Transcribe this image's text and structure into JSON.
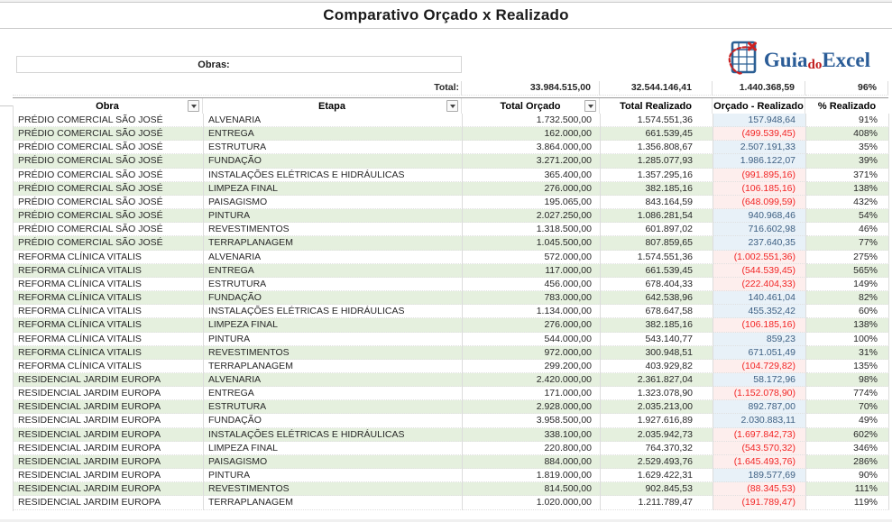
{
  "title": "Comparativo Orçado x Realizado",
  "filter_box": {
    "label": "Obras:"
  },
  "logo": {
    "text_primary": "Guia",
    "text_middle": "do",
    "text_secondary": "Excel",
    "blue": "#2a5c97",
    "red": "#c11b1b"
  },
  "totals": {
    "label": "Total:",
    "total_orcado": "33.984.515,00",
    "total_realizado": "32.544.146,41",
    "orcado_menos_realizado": "1.440.368,59",
    "pct_realizado": "96%"
  },
  "table": {
    "headers": [
      {
        "label": "Obra",
        "filter": true
      },
      {
        "label": "Etapa",
        "filter": true
      },
      {
        "label": "Total Orçado",
        "filter": true
      },
      {
        "label": "Total Realizado",
        "filter": false
      },
      {
        "label": "Orçado - Realizado",
        "filter": false
      },
      {
        "label": "% Realizado",
        "filter": false
      }
    ],
    "rows": [
      {
        "obra": "PRÉDIO COMERCIAL SÃO JOSÉ",
        "etapa": "ALVENARIA",
        "orcado": "1.732.500,00",
        "realizado": "1.574.551,36",
        "diff": "157.948,64",
        "diff_negative": false,
        "pct": "91%"
      },
      {
        "obra": "PRÉDIO COMERCIAL SÃO JOSÉ",
        "etapa": "ENTREGA",
        "orcado": "162.000,00",
        "realizado": "661.539,45",
        "diff": "(499.539,45)",
        "diff_negative": true,
        "pct": "408%"
      },
      {
        "obra": "PRÉDIO COMERCIAL SÃO JOSÉ",
        "etapa": "ESTRUTURA",
        "orcado": "3.864.000,00",
        "realizado": "1.356.808,67",
        "diff": "2.507.191,33",
        "diff_negative": false,
        "pct": "35%"
      },
      {
        "obra": "PRÉDIO COMERCIAL SÃO JOSÉ",
        "etapa": "FUNDAÇÃO",
        "orcado": "3.271.200,00",
        "realizado": "1.285.077,93",
        "diff": "1.986.122,07",
        "diff_negative": false,
        "pct": "39%"
      },
      {
        "obra": "PRÉDIO COMERCIAL SÃO JOSÉ",
        "etapa": "INSTALAÇÕES ELÉTRICAS E HIDRÁULICAS",
        "orcado": "365.400,00",
        "realizado": "1.357.295,16",
        "diff": "(991.895,16)",
        "diff_negative": true,
        "pct": "371%"
      },
      {
        "obra": "PRÉDIO COMERCIAL SÃO JOSÉ",
        "etapa": "LIMPEZA FINAL",
        "orcado": "276.000,00",
        "realizado": "382.185,16",
        "diff": "(106.185,16)",
        "diff_negative": true,
        "pct": "138%"
      },
      {
        "obra": "PRÉDIO COMERCIAL SÃO JOSÉ",
        "etapa": "PAISAGISMO",
        "orcado": "195.065,00",
        "realizado": "843.164,59",
        "diff": "(648.099,59)",
        "diff_negative": true,
        "pct": "432%"
      },
      {
        "obra": "PRÉDIO COMERCIAL SÃO JOSÉ",
        "etapa": "PINTURA",
        "orcado": "2.027.250,00",
        "realizado": "1.086.281,54",
        "diff": "940.968,46",
        "diff_negative": false,
        "pct": "54%"
      },
      {
        "obra": "PRÉDIO COMERCIAL SÃO JOSÉ",
        "etapa": "REVESTIMENTOS",
        "orcado": "1.318.500,00",
        "realizado": "601.897,02",
        "diff": "716.602,98",
        "diff_negative": false,
        "pct": "46%"
      },
      {
        "obra": "PRÉDIO COMERCIAL SÃO JOSÉ",
        "etapa": "TERRAPLANAGEM",
        "orcado": "1.045.500,00",
        "realizado": "807.859,65",
        "diff": "237.640,35",
        "diff_negative": false,
        "pct": "77%"
      },
      {
        "obra": "REFORMA CLÍNICA VITALIS",
        "etapa": "ALVENARIA",
        "orcado": "572.000,00",
        "realizado": "1.574.551,36",
        "diff": "(1.002.551,36)",
        "diff_negative": true,
        "pct": "275%"
      },
      {
        "obra": "REFORMA CLÍNICA VITALIS",
        "etapa": "ENTREGA",
        "orcado": "117.000,00",
        "realizado": "661.539,45",
        "diff": "(544.539,45)",
        "diff_negative": true,
        "pct": "565%"
      },
      {
        "obra": "REFORMA CLÍNICA VITALIS",
        "etapa": "ESTRUTURA",
        "orcado": "456.000,00",
        "realizado": "678.404,33",
        "diff": "(222.404,33)",
        "diff_negative": true,
        "pct": "149%"
      },
      {
        "obra": "REFORMA CLÍNICA VITALIS",
        "etapa": "FUNDAÇÃO",
        "orcado": "783.000,00",
        "realizado": "642.538,96",
        "diff": "140.461,04",
        "diff_negative": false,
        "pct": "82%"
      },
      {
        "obra": "REFORMA CLÍNICA VITALIS",
        "etapa": "INSTALAÇÕES ELÉTRICAS E HIDRÁULICAS",
        "orcado": "1.134.000,00",
        "realizado": "678.647,58",
        "diff": "455.352,42",
        "diff_negative": false,
        "pct": "60%"
      },
      {
        "obra": "REFORMA CLÍNICA VITALIS",
        "etapa": "LIMPEZA FINAL",
        "orcado": "276.000,00",
        "realizado": "382.185,16",
        "diff": "(106.185,16)",
        "diff_negative": true,
        "pct": "138%"
      },
      {
        "obra": "REFORMA CLÍNICA VITALIS",
        "etapa": "PINTURA",
        "orcado": "544.000,00",
        "realizado": "543.140,77",
        "diff": "859,23",
        "diff_negative": false,
        "pct": "100%"
      },
      {
        "obra": "REFORMA CLÍNICA VITALIS",
        "etapa": "REVESTIMENTOS",
        "orcado": "972.000,00",
        "realizado": "300.948,51",
        "diff": "671.051,49",
        "diff_negative": false,
        "pct": "31%"
      },
      {
        "obra": "REFORMA CLÍNICA VITALIS",
        "etapa": "TERRAPLANAGEM",
        "orcado": "299.200,00",
        "realizado": "403.929,82",
        "diff": "(104.729,82)",
        "diff_negative": true,
        "pct": "135%"
      },
      {
        "obra": "RESIDENCIAL JARDIM EUROPA",
        "etapa": "ALVENARIA",
        "orcado": "2.420.000,00",
        "realizado": "2.361.827,04",
        "diff": "58.172,96",
        "diff_negative": false,
        "pct": "98%"
      },
      {
        "obra": "RESIDENCIAL JARDIM EUROPA",
        "etapa": "ENTREGA",
        "orcado": "171.000,00",
        "realizado": "1.323.078,90",
        "diff": "(1.152.078,90)",
        "diff_negative": true,
        "pct": "774%"
      },
      {
        "obra": "RESIDENCIAL JARDIM EUROPA",
        "etapa": "ESTRUTURA",
        "orcado": "2.928.000,00",
        "realizado": "2.035.213,00",
        "diff": "892.787,00",
        "diff_negative": false,
        "pct": "70%"
      },
      {
        "obra": "RESIDENCIAL JARDIM EUROPA",
        "etapa": "FUNDAÇÃO",
        "orcado": "3.958.500,00",
        "realizado": "1.927.616,89",
        "diff": "2.030.883,11",
        "diff_negative": false,
        "pct": "49%"
      },
      {
        "obra": "RESIDENCIAL JARDIM EUROPA",
        "etapa": "INSTALAÇÕES ELÉTRICAS E HIDRÁULICAS",
        "orcado": "338.100,00",
        "realizado": "2.035.942,73",
        "diff": "(1.697.842,73)",
        "diff_negative": true,
        "pct": "602%"
      },
      {
        "obra": "RESIDENCIAL JARDIM EUROPA",
        "etapa": "LIMPEZA FINAL",
        "orcado": "220.800,00",
        "realizado": "764.370,32",
        "diff": "(543.570,32)",
        "diff_negative": true,
        "pct": "346%"
      },
      {
        "obra": "RESIDENCIAL JARDIM EUROPA",
        "etapa": "PAISAGISMO",
        "orcado": "884.000,00",
        "realizado": "2.529.493,76",
        "diff": "(1.645.493,76)",
        "diff_negative": true,
        "pct": "286%"
      },
      {
        "obra": "RESIDENCIAL JARDIM EUROPA",
        "etapa": "PINTURA",
        "orcado": "1.819.000,00",
        "realizado": "1.629.422,31",
        "diff": "189.577,69",
        "diff_negative": false,
        "pct": "90%"
      },
      {
        "obra": "RESIDENCIAL JARDIM EUROPA",
        "etapa": "REVESTIMENTOS",
        "orcado": "814.500,00",
        "realizado": "902.845,53",
        "diff": "(88.345,53)",
        "diff_negative": true,
        "pct": "111%"
      },
      {
        "obra": "RESIDENCIAL JARDIM EUROPA",
        "etapa": "TERRAPLANAGEM",
        "orcado": "1.020.000,00",
        "realizado": "1.211.789,47",
        "diff": "(191.789,47)",
        "diff_negative": true,
        "pct": "119%"
      }
    ]
  },
  "colors": {
    "band_green": "#e5f0de",
    "positive_fill": "#e8f1f8",
    "positive_text": "#3d5f82",
    "negative_fill": "#fdeeed",
    "negative_text": "#f22525",
    "header_border": "#9a9a9a",
    "grid_border": "#dcdcdc"
  }
}
